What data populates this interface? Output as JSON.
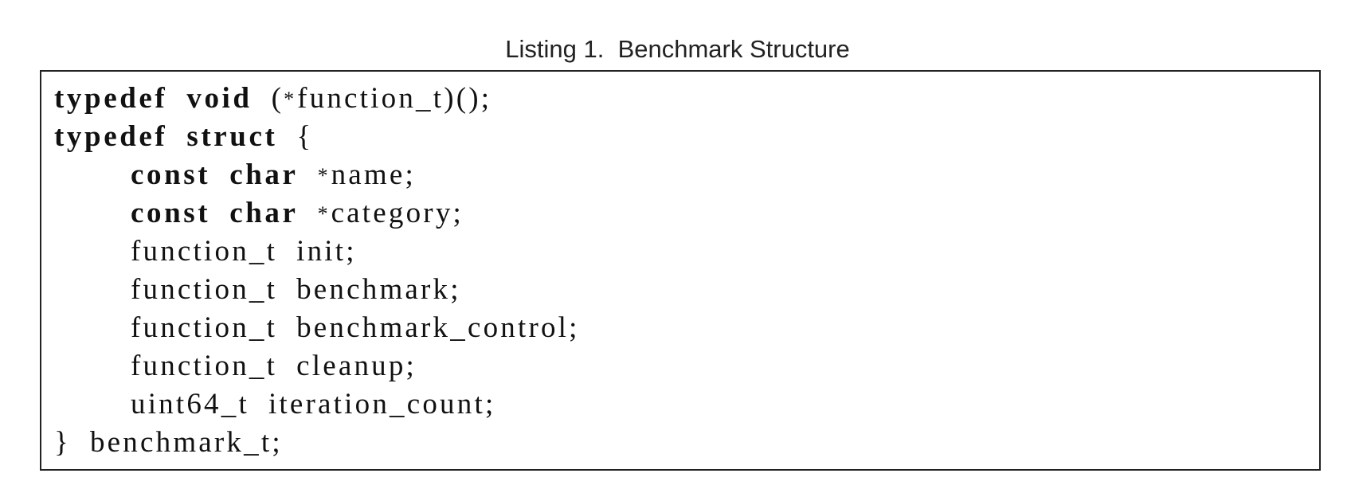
{
  "caption": {
    "label": "Listing 1.",
    "title": "Benchmark Structure"
  },
  "code": {
    "line1": {
      "kw1": "typedef",
      "kw2": "void",
      "rest": "(",
      "ptr": "*",
      "tail": "function_t)();"
    },
    "line2": {
      "kw1": "typedef",
      "kw2": "struct",
      "rest": "{"
    },
    "line3": {
      "kw1": "const",
      "kw2": "char",
      "ptr": "*",
      "tail": "name;"
    },
    "line4": {
      "kw1": "const",
      "kw2": "char",
      "ptr": "*",
      "tail": "category;"
    },
    "line5": {
      "type": "function_t",
      "name": "init;"
    },
    "line6": {
      "type": "function_t",
      "name": "benchmark;"
    },
    "line7": {
      "type": "function_t",
      "name": "benchmark_control;"
    },
    "line8": {
      "type": "function_t",
      "name": "cleanup;"
    },
    "line9": {
      "type": "uint64_t",
      "name": "iteration_count;"
    },
    "line10": {
      "brace": "}",
      "name": "benchmark_t;"
    }
  }
}
